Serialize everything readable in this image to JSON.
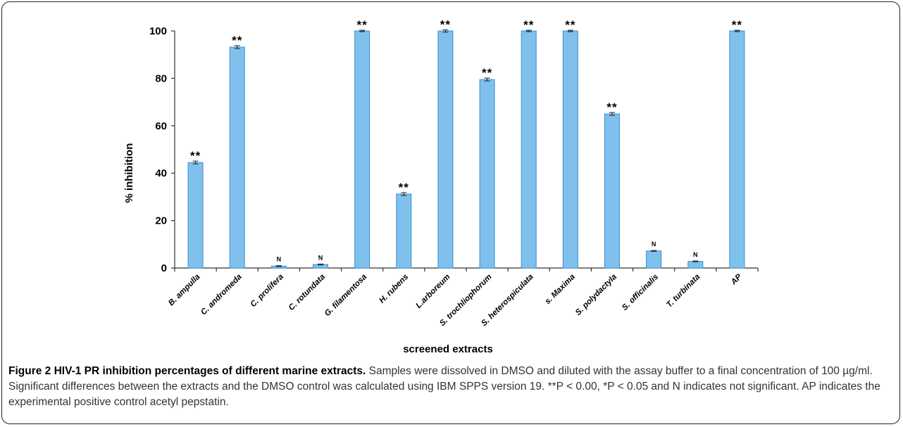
{
  "chart_data": {
    "type": "bar",
    "xlabel": "screened extracts",
    "ylabel": "% inhibition",
    "ylim": [
      0,
      100
    ],
    "yticks": [
      "0",
      "20",
      "40",
      "60",
      "80",
      "100"
    ],
    "grid": false,
    "bar_color": "#7fc1ec",
    "bar_stroke": "#3a8fd0",
    "categories": [
      "B. ampulla",
      "C. andromeda",
      "C. prolifera",
      "C. rotundata",
      "G. filamentosa",
      "H. rubens",
      "L.arboreum",
      "S. trochliophorum",
      "S. heterospiculata",
      "s. Maxima",
      "S. polydactyla",
      "S. officinalis",
      "T. turbinata",
      "AP"
    ],
    "values": [
      44.5,
      93.2,
      0.8,
      1.5,
      100,
      31.2,
      100,
      79.5,
      100,
      100,
      65,
      7.2,
      2.8,
      100
    ],
    "errors": [
      0.6,
      0.6,
      0.2,
      0.2,
      0.3,
      0.6,
      0.5,
      0.6,
      0.3,
      0.3,
      0.6,
      0.2,
      0.2,
      0.3
    ],
    "annotations": [
      "**",
      "**",
      "N",
      "N",
      "**",
      "**",
      "**",
      "**",
      "**",
      "**",
      "**",
      "N",
      "N",
      "**"
    ]
  },
  "caption": {
    "title": "Figure 2 HIV-1 PR inhibition percentages of different marine extracts.",
    "body": " Samples were dissolved in DMSO and diluted with the assay buffer to a final concentration of 100 µg/ml. Significant differences between the extracts and the DMSO control was calculated using IBM SPPS version 19. **P < 0.00, *P < 0.05 and N indicates not significant. AP indicates the experimental positive control acetyl pepstatin."
  }
}
